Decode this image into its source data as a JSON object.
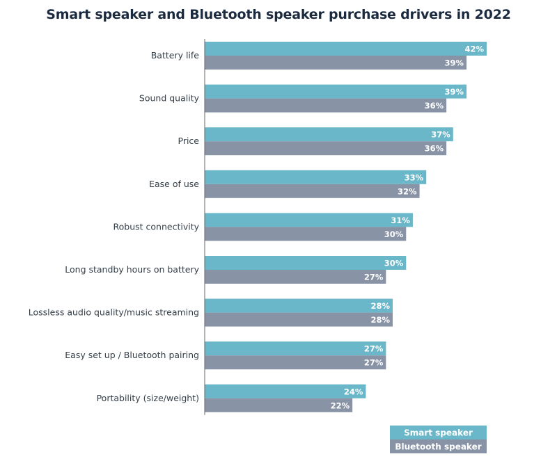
{
  "chart_data": {
    "type": "bar",
    "orientation": "horizontal",
    "title": "Smart speaker and Bluetooth speaker purchase drivers in 2022",
    "categories": [
      "Battery life",
      "Sound quality",
      "Price",
      "Ease of use",
      "Robust connectivity",
      "Long standby hours on battery",
      "Lossless audio quality/music streaming",
      "Easy set up / Bluetooth pairing",
      "Portability (size/weight)"
    ],
    "series": [
      {
        "name": "Smart speaker",
        "color": "#6ab7c9",
        "values": [
          42,
          39,
          37,
          33,
          31,
          30,
          28,
          27,
          24
        ],
        "labels": [
          "42%",
          "39%",
          "37%",
          "33%",
          "31%",
          "30%",
          "28%",
          "27%",
          "24%"
        ]
      },
      {
        "name": "Bluetooth speaker",
        "color": "#8893a6",
        "values": [
          39,
          36,
          36,
          32,
          30,
          27,
          28,
          27,
          22
        ],
        "labels": [
          "39%",
          "36%",
          "36%",
          "32%",
          "30%",
          "27%",
          "28%",
          "27%",
          "22%"
        ]
      }
    ],
    "unit": "%",
    "xlim": [
      0,
      42
    ],
    "grid": false,
    "legend_position": "bottom-right"
  }
}
